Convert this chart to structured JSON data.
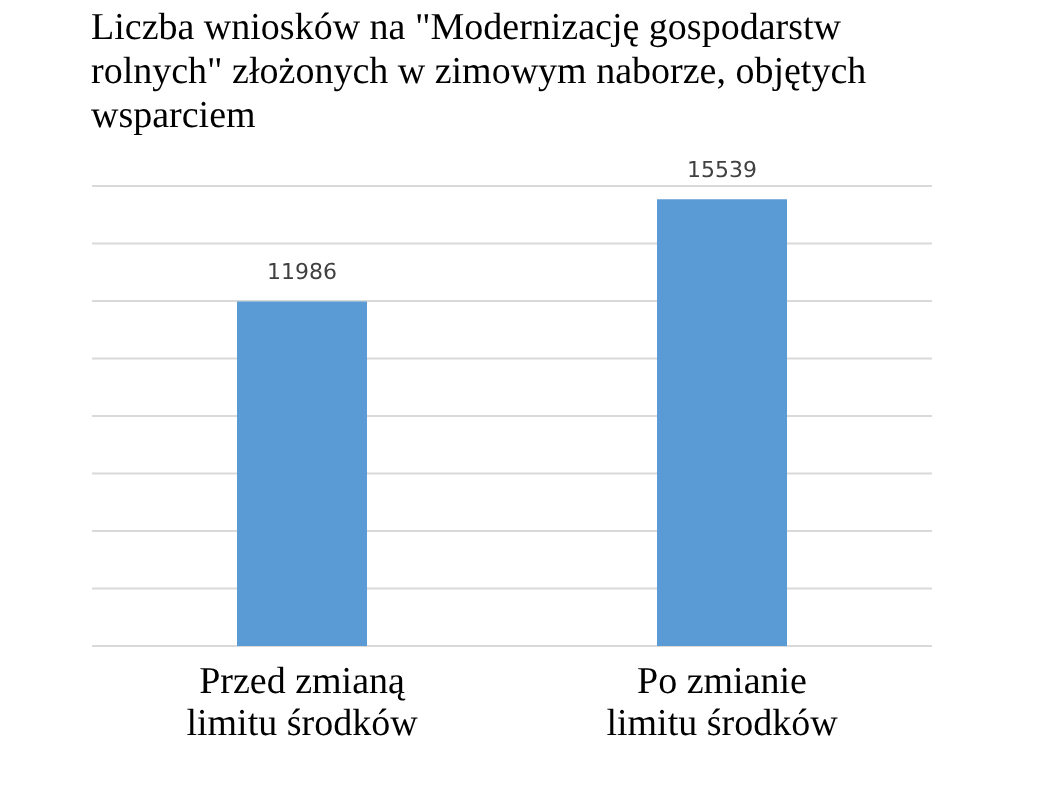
{
  "chart_data": {
    "type": "bar",
    "title": "Liczba wniosków na \"Modernizację gospodarstw rolnych\" złożonych w zimowym naborze, objętych wsparciem",
    "categories": [
      "Przed zmianą limitu środków",
      "Po zmianie limitu środków"
    ],
    "values": [
      11986,
      15539
    ],
    "color": "#5b9bd5",
    "ylim": [
      0,
      16000
    ],
    "yticks": [
      {
        "value": 0,
        "label": null
      },
      {
        "value": 2000,
        "label": null
      },
      {
        "value": 4000,
        "label": null
      },
      {
        "value": 6000,
        "label": null
      },
      {
        "value": 8000,
        "label": null
      },
      {
        "value": 10000,
        "label": null
      },
      {
        "value": 12000,
        "label": null
      },
      {
        "value": 14000,
        "label": null
      },
      {
        "value": 16000,
        "label": null
      }
    ],
    "grid": "y",
    "tick_labels": "x",
    "data_labels": true
  }
}
